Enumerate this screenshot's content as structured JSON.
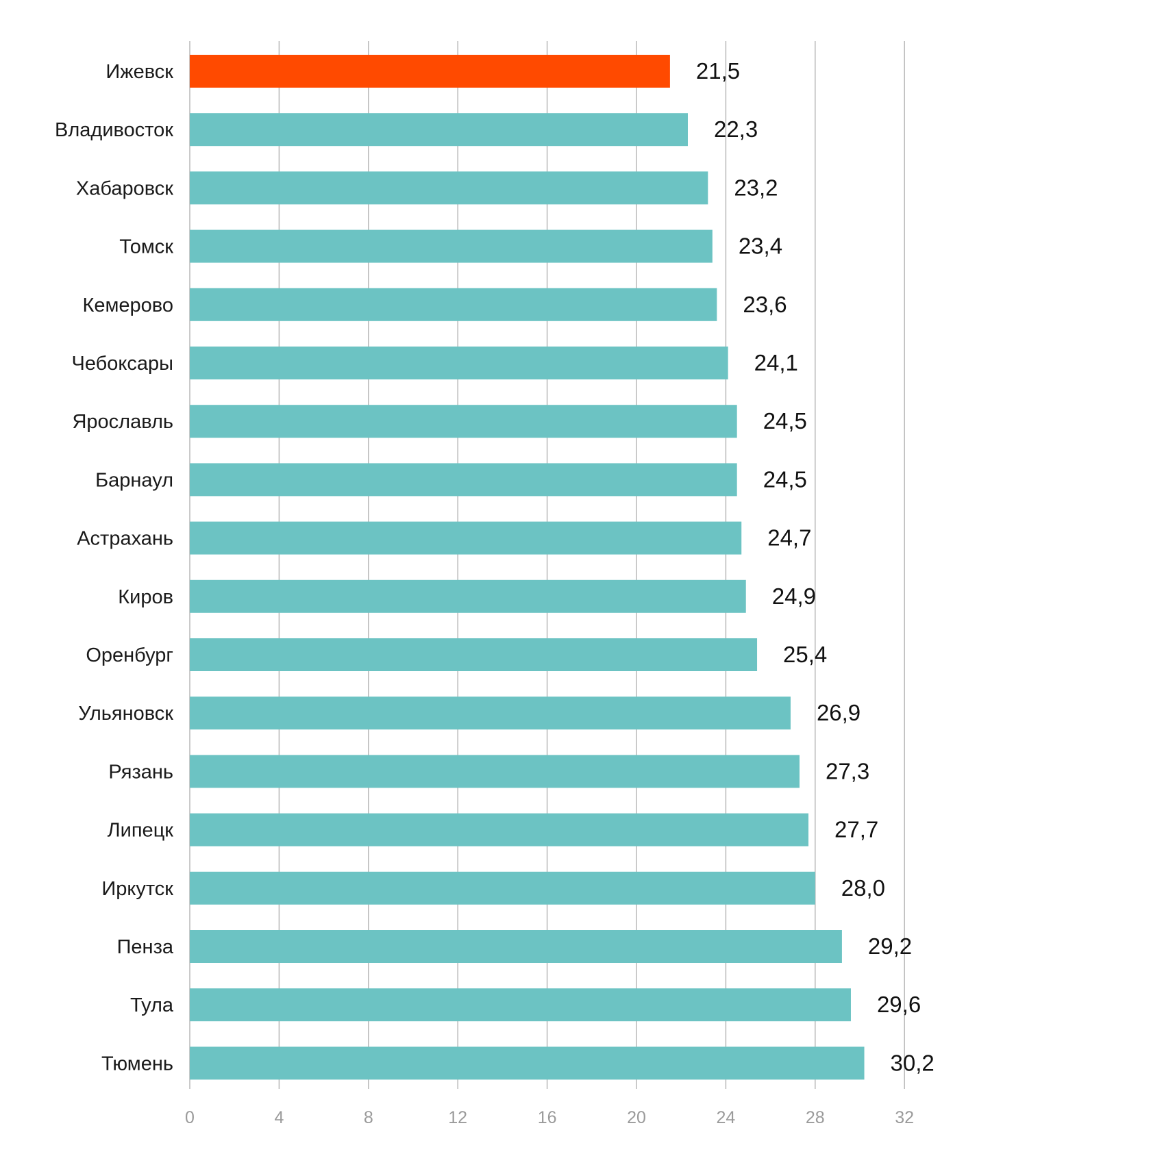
{
  "chart_data": {
    "type": "bar",
    "orientation": "horizontal",
    "title": "",
    "xlabel": "",
    "ylabel": "",
    "categories": [
      "Ижевск",
      "Владивосток",
      "Хабаровск",
      "Томск",
      "Кемерово",
      "Чебоксары",
      "Ярославль",
      "Барнаул",
      "Астрахань",
      "Киров",
      "Оренбург",
      "Ульяновск",
      "Рязань",
      "Липецк",
      "Иркутск",
      "Пенза",
      "Тула",
      "Тюмень"
    ],
    "values": [
      21.5,
      22.3,
      23.2,
      23.4,
      23.6,
      24.1,
      24.5,
      24.5,
      24.7,
      24.9,
      25.4,
      26.9,
      27.3,
      27.7,
      28.0,
      29.2,
      29.6,
      30.2
    ],
    "value_labels": [
      "21,5",
      "22,3",
      "23,2",
      "23,4",
      "23,6",
      "24,1",
      "24,5",
      "24,5",
      "24,7",
      "24,9",
      "25,4",
      "26,9",
      "27,3",
      "27,7",
      "28,0",
      "29,2",
      "29,6",
      "30,2"
    ],
    "xlim": [
      0,
      32
    ],
    "x_ticks": [
      0,
      4,
      8,
      12,
      16,
      20,
      24,
      28,
      32
    ],
    "x_tick_labels": [
      "0",
      "4",
      "8",
      "12",
      "16",
      "20",
      "24",
      "28",
      "32"
    ],
    "grid": "vertical",
    "legend": "none",
    "colors": {
      "default_bar": "#6cc3c3",
      "highlight_bar": "#ff4a00",
      "grid": "#b8b8b8",
      "tick_text": "#9a9a9a",
      "label_text": "#1a1a1a"
    },
    "highlight_category": "Ижевск"
  }
}
